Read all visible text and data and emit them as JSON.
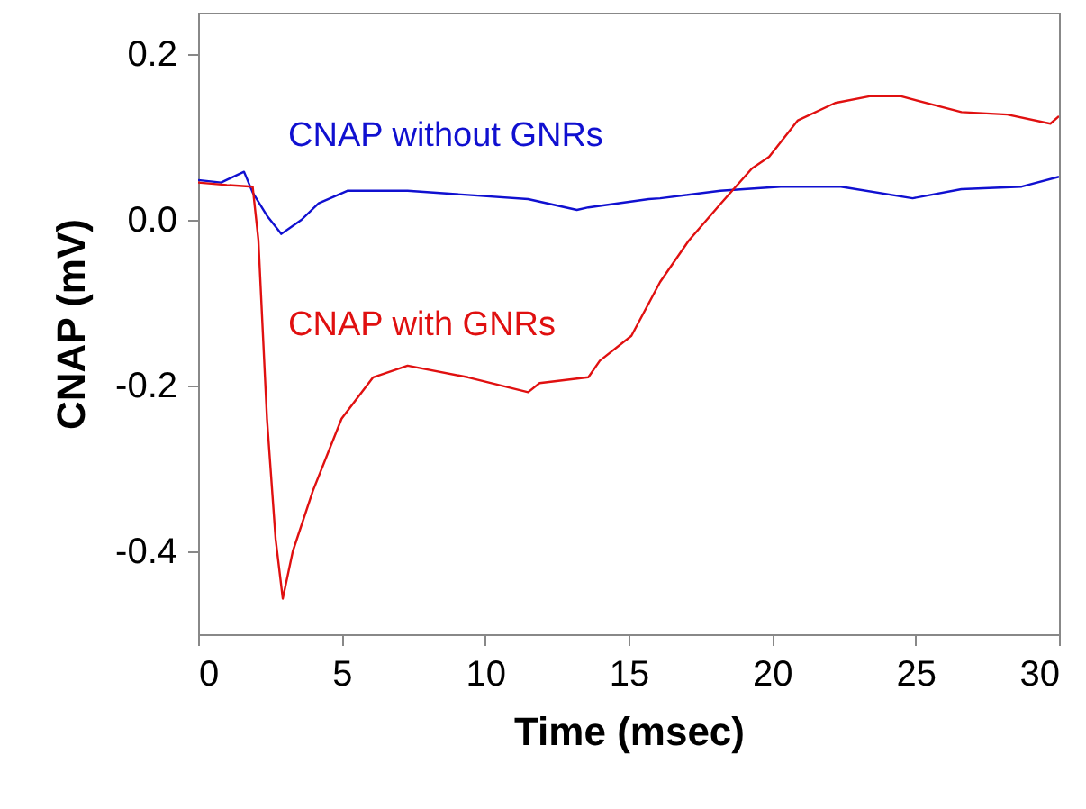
{
  "chart_data": {
    "type": "line",
    "xlabel": "Time (msec)",
    "ylabel": "CNAP (mV)",
    "xlim": [
      0,
      30
    ],
    "xticks": [
      0,
      5,
      10,
      15,
      20,
      25,
      30
    ],
    "ylim": [
      -0.5,
      0.25
    ],
    "yticks": [
      {
        "value": -0.4,
        "label": "-0.4"
      },
      {
        "value": -0.2,
        "label": "-0.2"
      },
      {
        "value": 0,
        "label": "0.0"
      },
      {
        "value": 0.2,
        "label": "0.2"
      }
    ],
    "grid": false,
    "line_style": "solid",
    "marker": "none",
    "series": [
      {
        "name": "CNAP without GNRs",
        "color": "#1010d0",
        "x": [
          0,
          0.8,
          1.6,
          1.9,
          2.4,
          2.9,
          3.6,
          4.2,
          5.2,
          7.3,
          9.4,
          11.5,
          13.2,
          13.6,
          15.7,
          16.1,
          18.2,
          20.3,
          22.4,
          24.9,
          26.6,
          28.7,
          30
        ],
        "values": [
          0.048,
          0.045,
          0.058,
          0.033,
          0.005,
          -0.017,
          0.0,
          0.02,
          0.035,
          0.035,
          0.03,
          0.025,
          0.012,
          0.015,
          0.025,
          0.026,
          0.035,
          0.04,
          0.04,
          0.026,
          0.037,
          0.04,
          0.052
        ]
      },
      {
        "name": "CNAP with GNRs",
        "color": "#e01010",
        "x": [
          0,
          1.0,
          1.9,
          2.1,
          2.4,
          2.7,
          2.95,
          3.3,
          4.0,
          5.0,
          6.1,
          7.3,
          9.4,
          11.5,
          11.9,
          13.6,
          14.0,
          15.1,
          16.1,
          17.1,
          18.2,
          19.3,
          19.9,
          20.9,
          22.2,
          23.4,
          24.5,
          26.6,
          28.2,
          29.7,
          30
        ],
        "values": [
          0.045,
          0.042,
          0.04,
          -0.024,
          -0.24,
          -0.385,
          -0.457,
          -0.4,
          -0.327,
          -0.24,
          -0.19,
          -0.176,
          -0.19,
          -0.208,
          -0.197,
          -0.19,
          -0.17,
          -0.14,
          -0.075,
          -0.025,
          0.019,
          0.062,
          0.076,
          0.12,
          0.141,
          0.149,
          0.149,
          0.13,
          0.127,
          0.116,
          0.125
        ]
      }
    ]
  }
}
